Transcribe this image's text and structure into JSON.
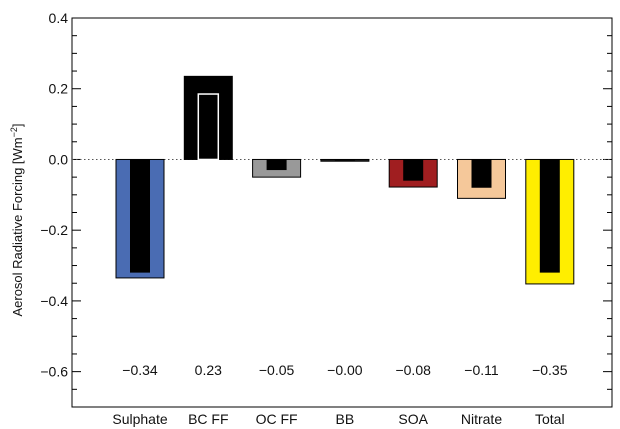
{
  "chart_data": {
    "type": "bar",
    "ylabel": "Aerosol Radiative Forcing [Wm",
    "ylabel_sup": "−2",
    "ylabel_end": "]",
    "ylim": [
      -0.7,
      0.4
    ],
    "yticks": [
      0.4,
      0.2,
      0.0,
      -0.2,
      -0.4,
      -0.6
    ],
    "ytick_labels": [
      "0.4",
      "0.2",
      "0.0",
      "−0.2",
      "−0.4",
      "−0.6"
    ],
    "categories": [
      "Sulphate",
      "BC FF",
      "OC FF",
      "BB",
      "SOA",
      "Nitrate",
      "Total"
    ],
    "values": [
      -0.335,
      0.235,
      -0.05,
      -0.005,
      -0.078,
      -0.11,
      -0.352
    ],
    "inner_values": [
      -0.32,
      0.185,
      -0.03,
      -0.003,
      -0.06,
      -0.08,
      -0.32
    ],
    "value_labels": [
      "−0.34",
      "0.23",
      "−0.05",
      "−0.00",
      "−0.08",
      "−0.11",
      "−0.35"
    ],
    "colors": [
      "#4a6cb3",
      "#000000",
      "#999999",
      "#222222",
      "#a01e20",
      "#f5c89a",
      "#ffee00"
    ],
    "inner_colors": [
      "#000000",
      "#ffffff",
      "#000000",
      "#000000",
      "#000000",
      "#000000",
      "#000000"
    ],
    "inner_style": [
      "fill",
      "outline",
      "fill",
      "fill",
      "fill",
      "fill",
      "fill"
    ],
    "zero_line": "dotted"
  }
}
